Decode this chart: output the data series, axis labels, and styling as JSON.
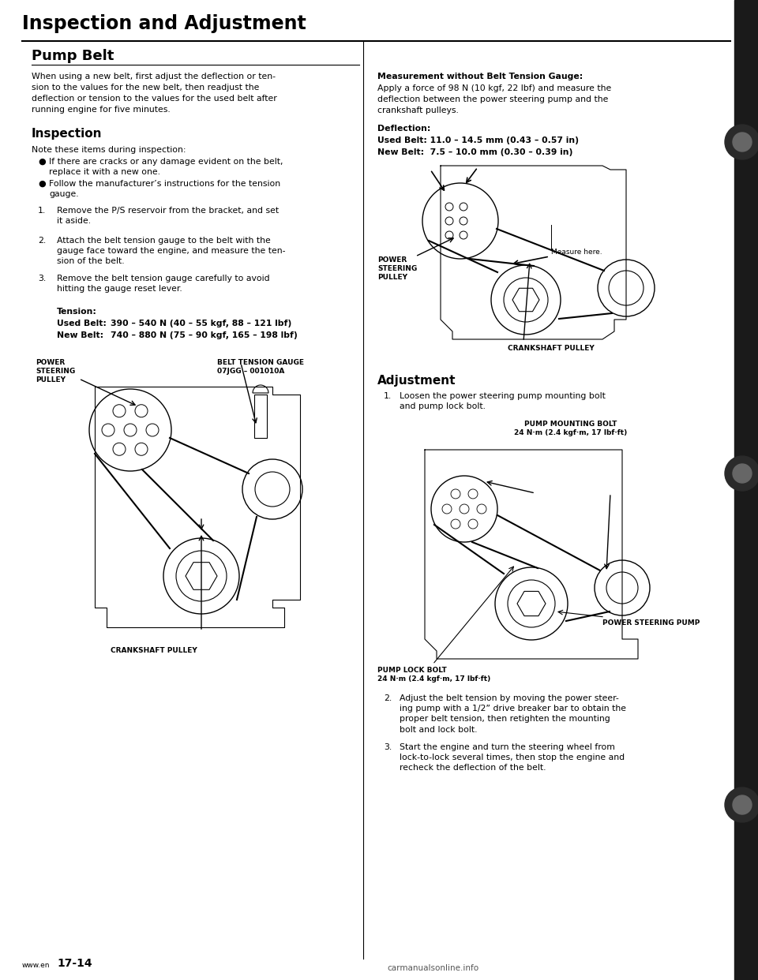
{
  "page_title": "Inspection and Adjustment",
  "section_title": "Pump Belt",
  "bg_color": "#ffffff",
  "text_color": "#000000",
  "left_column": {
    "intro": "When using a new belt, first adjust the deflection or ten-\nsion to the values for the new belt, then readjust the\ndeflection or tension to the values for the used belt after\nrunning engine for five minutes.",
    "inspection_title": "Inspection",
    "inspection_note": "Note these items during inspection:",
    "bullet1": "If there are cracks or any damage evident on the belt,\nreplace it with a new one.",
    "bullet2": "Follow the manufacturer’s instructions for the tension\ngauge.",
    "step1": "Remove the P/S reservoir from the bracket, and set\nit aside.",
    "step2": "Attach the belt tension gauge to the belt with the\ngauge face toward the engine, and measure the ten-\nsion of the belt.",
    "step3": "Remove the belt tension gauge carefully to avoid\nhitting the gauge reset lever.",
    "tension_title": "Tension:",
    "tension_used_label": "Used Belt:",
    "tension_used_val": "390 – 540 N (40 – 55 kgf, 88 – 121 lbf)",
    "tension_new_label": "New Belt:",
    "tension_new_val": "740 – 880 N (75 – 90 kgf, 165 – 198 lbf)",
    "lbl_power_steering": "POWER\nSTEERING\nPULLEY",
    "lbl_belt_gauge": "BELT TENSION GAUGE\n07JGG – 001010A",
    "lbl_crankshaft": "CRANKSHAFT PULLEY"
  },
  "right_column": {
    "measurement_title": "Measurement without Belt Tension Gauge:",
    "measurement_text": "Apply a force of 98 N (10 kgf, 22 lbf) and measure the\ndeflection between the power steering pump and the\ncrankshaft pulleys.",
    "deflection_title": "Deflection:",
    "deflection_used": "Used Belt: 11.0 – 14.5 mm (0.43 – 0.57 in)",
    "deflection_new": "New Belt:  7.5 – 10.0 mm (0.30 – 0.39 in)",
    "lbl_measure_here": "Measure here.",
    "lbl_power_steering2": "POWER\nSTEERING\nPULLEY",
    "lbl_crankshaft2": "CRANKSHAFT PULLEY",
    "adjustment_title": "Adjustment",
    "adj_step1": "Loosen the power steering pump mounting bolt\nand pump lock bolt.",
    "adj_step2": "Adjust the belt tension by moving the power steer-\ning pump with a 1/2” drive breaker bar to obtain the\nproper belt tension, then retighten the mounting\nbolt and lock bolt.",
    "adj_step3": "Start the engine and turn the steering wheel from\nlock-to-lock several times, then stop the engine and\nrecheck the deflection of the belt.",
    "pump_mounting": "PUMP MOUNTING BOLT\n24 N·m (2.4 kgf·m, 17 lbf·ft)",
    "pump_lock": "PUMP LOCK BOLT\n24 N·m (2.4 kgf·m, 17 lbf·ft)",
    "power_steering_pump": "POWER STEERING PUMP"
  },
  "footer_url": "www.en",
  "footer_page": "17-14",
  "footer_watermark": "carmanualsonline.info"
}
